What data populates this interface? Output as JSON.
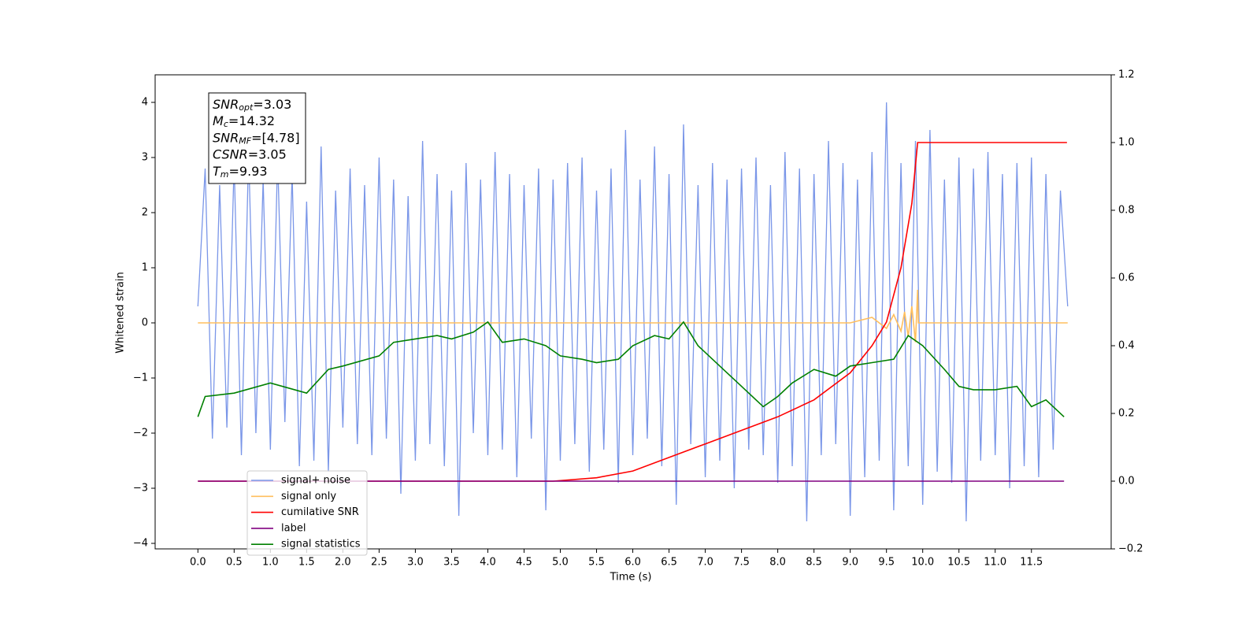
{
  "chart_data": {
    "type": "line",
    "xlabel": "Time (s)",
    "ylabel": "Whitened strain",
    "xlim": [
      -0.59,
      12.6
    ],
    "ylim": [
      -4.1,
      4.5
    ],
    "y2lim": [
      -0.2,
      1.2
    ],
    "xticks": [
      {
        "value": 0,
        "label": "0.0"
      },
      0.5,
      {
        "value": 1,
        "label": "1.0"
      },
      1.5,
      {
        "value": 2,
        "label": "2.0"
      },
      2.5,
      {
        "value": 3,
        "label": "3.0"
      },
      3.5,
      {
        "value": 4,
        "label": "4.0"
      },
      4.5,
      {
        "value": 5,
        "label": "5.0"
      },
      5.5,
      {
        "value": 6,
        "label": "6.0"
      },
      6.5,
      {
        "value": 7,
        "label": "7.0"
      },
      7.5,
      {
        "value": 8,
        "label": "8.0"
      },
      8.5,
      {
        "value": 9,
        "label": "9.0"
      },
      9.5,
      {
        "value": 10,
        "label": "10.0"
      },
      10.5,
      {
        "value": 11,
        "label": "11.0"
      },
      11.5
    ],
    "yticks": [
      {
        "value": -4,
        "label": "−4"
      },
      {
        "value": -3,
        "label": "−3"
      },
      {
        "value": -2,
        "label": "−2"
      },
      {
        "value": -1,
        "label": "−1"
      },
      0,
      1,
      2,
      3,
      4
    ],
    "y2ticks": [
      {
        "value": -0.2,
        "label": "−0.2"
      },
      {
        "value": 0,
        "label": "0.0"
      },
      0.2,
      0.4,
      0.6,
      0.8,
      {
        "value": 1,
        "label": "1.0"
      },
      1.2
    ],
    "annotations": [
      {
        "symbol": "SNR",
        "subscript": "opt",
        "text": "=3.03"
      },
      {
        "symbol": "M",
        "subscript": "c",
        "text": "=14.32"
      },
      {
        "symbol": "SNR",
        "subscript": "MF",
        "text": "=[4.78]"
      },
      {
        "symbol": "CSNR",
        "text": "=3.05"
      },
      {
        "symbol": "T",
        "subscript": "m",
        "text": "=9.93"
      }
    ],
    "series": [
      {
        "name": "signal+ noise",
        "color": "#7a96e8",
        "axis": "y",
        "x": [
          0,
          0.1,
          0.2,
          0.3,
          0.4,
          0.5,
          0.6,
          0.7,
          0.8,
          0.9,
          1.0,
          1.1,
          1.2,
          1.3,
          1.4,
          1.5,
          1.6,
          1.7,
          1.8,
          1.9,
          2.0,
          2.1,
          2.2,
          2.3,
          2.4,
          2.5,
          2.6,
          2.7,
          2.8,
          2.9,
          3.0,
          3.1,
          3.2,
          3.3,
          3.4,
          3.5,
          3.6,
          3.7,
          3.8,
          3.9,
          4.0,
          4.1,
          4.2,
          4.3,
          4.4,
          4.5,
          4.6,
          4.7,
          4.8,
          4.9,
          5.0,
          5.1,
          5.2,
          5.3,
          5.4,
          5.5,
          5.6,
          5.7,
          5.8,
          5.9,
          6.0,
          6.1,
          6.2,
          6.3,
          6.4,
          6.5,
          6.6,
          6.7,
          6.8,
          6.9,
          7.0,
          7.1,
          7.2,
          7.3,
          7.4,
          7.5,
          7.6,
          7.7,
          7.8,
          7.9,
          8.0,
          8.1,
          8.2,
          8.3,
          8.4,
          8.5,
          8.6,
          8.7,
          8.8,
          8.9,
          9.0,
          9.1,
          9.2,
          9.3,
          9.4,
          9.5,
          9.6,
          9.7,
          9.8,
          9.9,
          10.0,
          10.1,
          10.2,
          10.3,
          10.4,
          10.5,
          10.6,
          10.7,
          10.8,
          10.9,
          11.0,
          11.1,
          11.2,
          11.3,
          11.4,
          11.5,
          11.6,
          11.7,
          11.8,
          11.9,
          12.0
        ],
        "values": [
          0.3,
          2.8,
          -2.1,
          2.5,
          -1.9,
          2.9,
          -2.4,
          3.1,
          -2.0,
          2.6,
          -2.3,
          3.0,
          -1.8,
          2.7,
          -2.6,
          2.2,
          -2.5,
          3.2,
          -2.7,
          2.4,
          -1.9,
          2.8,
          -2.2,
          2.5,
          -2.4,
          3.0,
          -2.1,
          2.6,
          -3.1,
          2.3,
          -2.5,
          3.3,
          -2.2,
          2.7,
          -2.6,
          2.4,
          -3.5,
          2.9,
          -2.0,
          2.6,
          -2.4,
          3.1,
          -2.3,
          2.7,
          -2.8,
          2.5,
          -2.1,
          2.8,
          -3.4,
          2.6,
          -2.5,
          2.9,
          -2.2,
          3.0,
          -2.7,
          2.4,
          -2.3,
          2.8,
          -2.9,
          3.5,
          -2.4,
          2.6,
          -2.1,
          3.2,
          -2.6,
          2.7,
          -3.3,
          3.6,
          -2.2,
          2.5,
          -2.8,
          2.9,
          -2.5,
          2.6,
          -3.0,
          2.8,
          -2.3,
          3.0,
          -2.4,
          2.5,
          -2.9,
          3.1,
          -2.6,
          2.8,
          -3.6,
          2.7,
          -2.4,
          3.3,
          -2.2,
          2.9,
          -3.5,
          2.6,
          -2.8,
          3.1,
          -2.5,
          4.0,
          -3.4,
          2.9,
          -2.6,
          3.3,
          -3.3,
          3.5,
          -2.7,
          2.6,
          -2.9,
          3.0,
          -3.6,
          2.8,
          -2.5,
          3.1,
          -2.4,
          2.7,
          -3.0,
          2.9,
          -2.6,
          3.0,
          -2.8,
          2.7,
          -2.3,
          2.4,
          0.3
        ]
      },
      {
        "name": "signal only",
        "color": "#ffbf5e",
        "axis": "y",
        "x": [
          0,
          9.0,
          9.3,
          9.5,
          9.6,
          9.7,
          9.75,
          9.8,
          9.85,
          9.9,
          9.93,
          9.94,
          12.0
        ],
        "values": [
          0,
          0,
          0.1,
          -0.1,
          0.15,
          -0.15,
          0.2,
          -0.25,
          0.3,
          -0.35,
          0.6,
          0,
          0
        ]
      },
      {
        "name": "cumilative SNR",
        "color": "#ff0000",
        "axis": "y2",
        "x": [
          0,
          4.9,
          5.5,
          6.0,
          6.5,
          7.0,
          7.5,
          8.0,
          8.5,
          9.0,
          9.3,
          9.5,
          9.7,
          9.85,
          9.93,
          11.99
        ],
        "values": [
          0,
          0,
          0.01,
          0.03,
          0.07,
          0.11,
          0.15,
          0.19,
          0.24,
          0.32,
          0.4,
          0.47,
          0.63,
          0.82,
          1.0,
          1.0
        ]
      },
      {
        "name": "label",
        "color": "#800080",
        "axis": "y2",
        "x": [
          0,
          11.95
        ],
        "values": [
          0,
          0
        ]
      },
      {
        "name": "signal statistics",
        "color": "#008000",
        "axis": "y2",
        "x": [
          0,
          0.1,
          0.5,
          1.0,
          1.5,
          1.8,
          2.0,
          2.5,
          2.7,
          3.0,
          3.3,
          3.5,
          3.8,
          4.0,
          4.2,
          4.5,
          4.8,
          5.0,
          5.3,
          5.5,
          5.8,
          6.0,
          6.3,
          6.5,
          6.7,
          6.9,
          7.2,
          7.5,
          7.8,
          8.0,
          8.2,
          8.5,
          8.8,
          9.0,
          9.3,
          9.6,
          9.8,
          10.0,
          10.3,
          10.5,
          10.7,
          11.0,
          11.3,
          11.5,
          11.7,
          11.95
        ],
        "values": [
          0.19,
          0.25,
          0.26,
          0.29,
          0.26,
          0.33,
          0.34,
          0.37,
          0.41,
          0.42,
          0.43,
          0.42,
          0.44,
          0.47,
          0.41,
          0.42,
          0.4,
          0.37,
          0.36,
          0.35,
          0.36,
          0.4,
          0.43,
          0.42,
          0.47,
          0.4,
          0.34,
          0.28,
          0.22,
          0.25,
          0.29,
          0.33,
          0.31,
          0.34,
          0.35,
          0.36,
          0.43,
          0.4,
          0.33,
          0.28,
          0.27,
          0.27,
          0.28,
          0.22,
          0.24,
          0.19
        ]
      }
    ]
  }
}
